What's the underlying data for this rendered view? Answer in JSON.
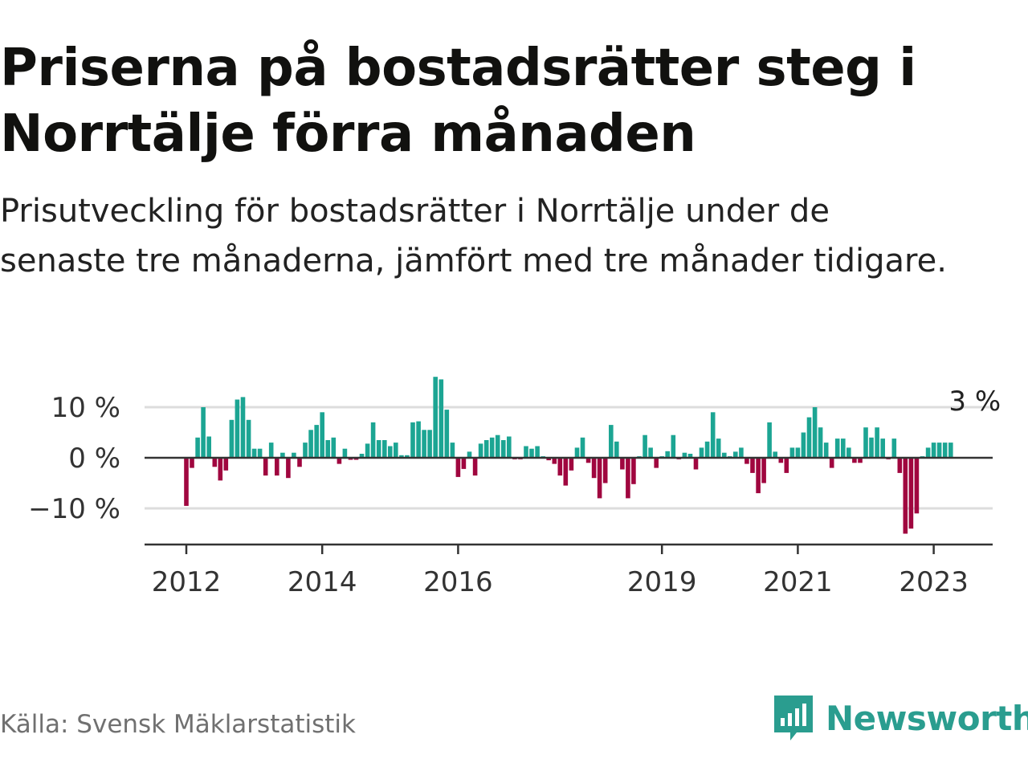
{
  "title": "Priserna på bostadsrätter steg i Norrtälje förra månaden",
  "subtitle": "Prisutveckling för bostadsrätter i Norrtälje under de senaste tre månaderna, jämfört med tre månader tidigare.",
  "source": "Källa: Svensk Mäklarstatistik",
  "brand": "Newsworthy",
  "colors": {
    "positive": "#1ca593",
    "negative": "#a0063f",
    "grid": "#dddddd",
    "axis": "#333333",
    "brand": "#2a9d8f"
  },
  "chart_data": {
    "type": "bar",
    "title": "",
    "xlabel": "",
    "ylabel": "",
    "ylim": [
      -17,
      20
    ],
    "y_ticks": [
      {
        "value": 10,
        "label": "10 %"
      },
      {
        "value": 0,
        "label": "0 %"
      },
      {
        "value": -10,
        "label": "−10 %"
      }
    ],
    "x_ticks": [
      {
        "value": 2012.0,
        "label": "2012"
      },
      {
        "value": 2014.0,
        "label": "2014"
      },
      {
        "value": 2016.0,
        "label": "2016"
      },
      {
        "value": 2019.0,
        "label": "2019"
      },
      {
        "value": 2021.0,
        "label": "2021"
      },
      {
        "value": 2023.0,
        "label": "2023"
      }
    ],
    "start": "2012-01",
    "end_label": "3 %",
    "values": [
      -9.5,
      -2,
      4,
      10,
      4.2,
      -1.8,
      -4.5,
      -2.5,
      7.5,
      11.5,
      12,
      7.5,
      1.8,
      1.8,
      -3.5,
      3,
      -3.5,
      1,
      -4,
      1,
      -1.8,
      3,
      5.5,
      6.5,
      9,
      3.5,
      4,
      -1.2,
      1.8,
      -0.4,
      -0.4,
      0.8,
      2.8,
      7,
      3.5,
      3.5,
      2.3,
      3,
      0.5,
      0.5,
      7,
      7.2,
      5.5,
      5.5,
      16,
      15.5,
      9.5,
      3,
      -3.8,
      -2.2,
      1.2,
      -3.5,
      2.8,
      3.5,
      4,
      4.5,
      3.5,
      4.2,
      -0.3,
      -0.3,
      2.3,
      1.8,
      2.3,
      0.3,
      -0.5,
      -1.2,
      -3.5,
      -5.5,
      -2.5,
      2,
      4,
      -1,
      -4,
      -8,
      -5,
      6.5,
      3.2,
      -2.3,
      -8,
      -5.2,
      0.3,
      4.5,
      2,
      -2,
      0.3,
      1.3,
      4.5,
      -0.3,
      1,
      0.8,
      -2.3,
      2,
      3.2,
      9,
      3.8,
      1,
      0.3,
      1.2,
      2,
      -1.2,
      -3,
      -7,
      -5,
      7,
      1.2,
      -1,
      -3,
      2,
      2,
      5,
      8,
      10,
      6,
      3,
      -2,
      3.8,
      3.8,
      2,
      -1,
      -1,
      6,
      4,
      6,
      3.8,
      -0.3,
      3.8,
      -3,
      -15,
      -14,
      -11,
      0.3,
      2,
      3,
      3,
      3,
      3
    ],
    "last_value": 3
  }
}
